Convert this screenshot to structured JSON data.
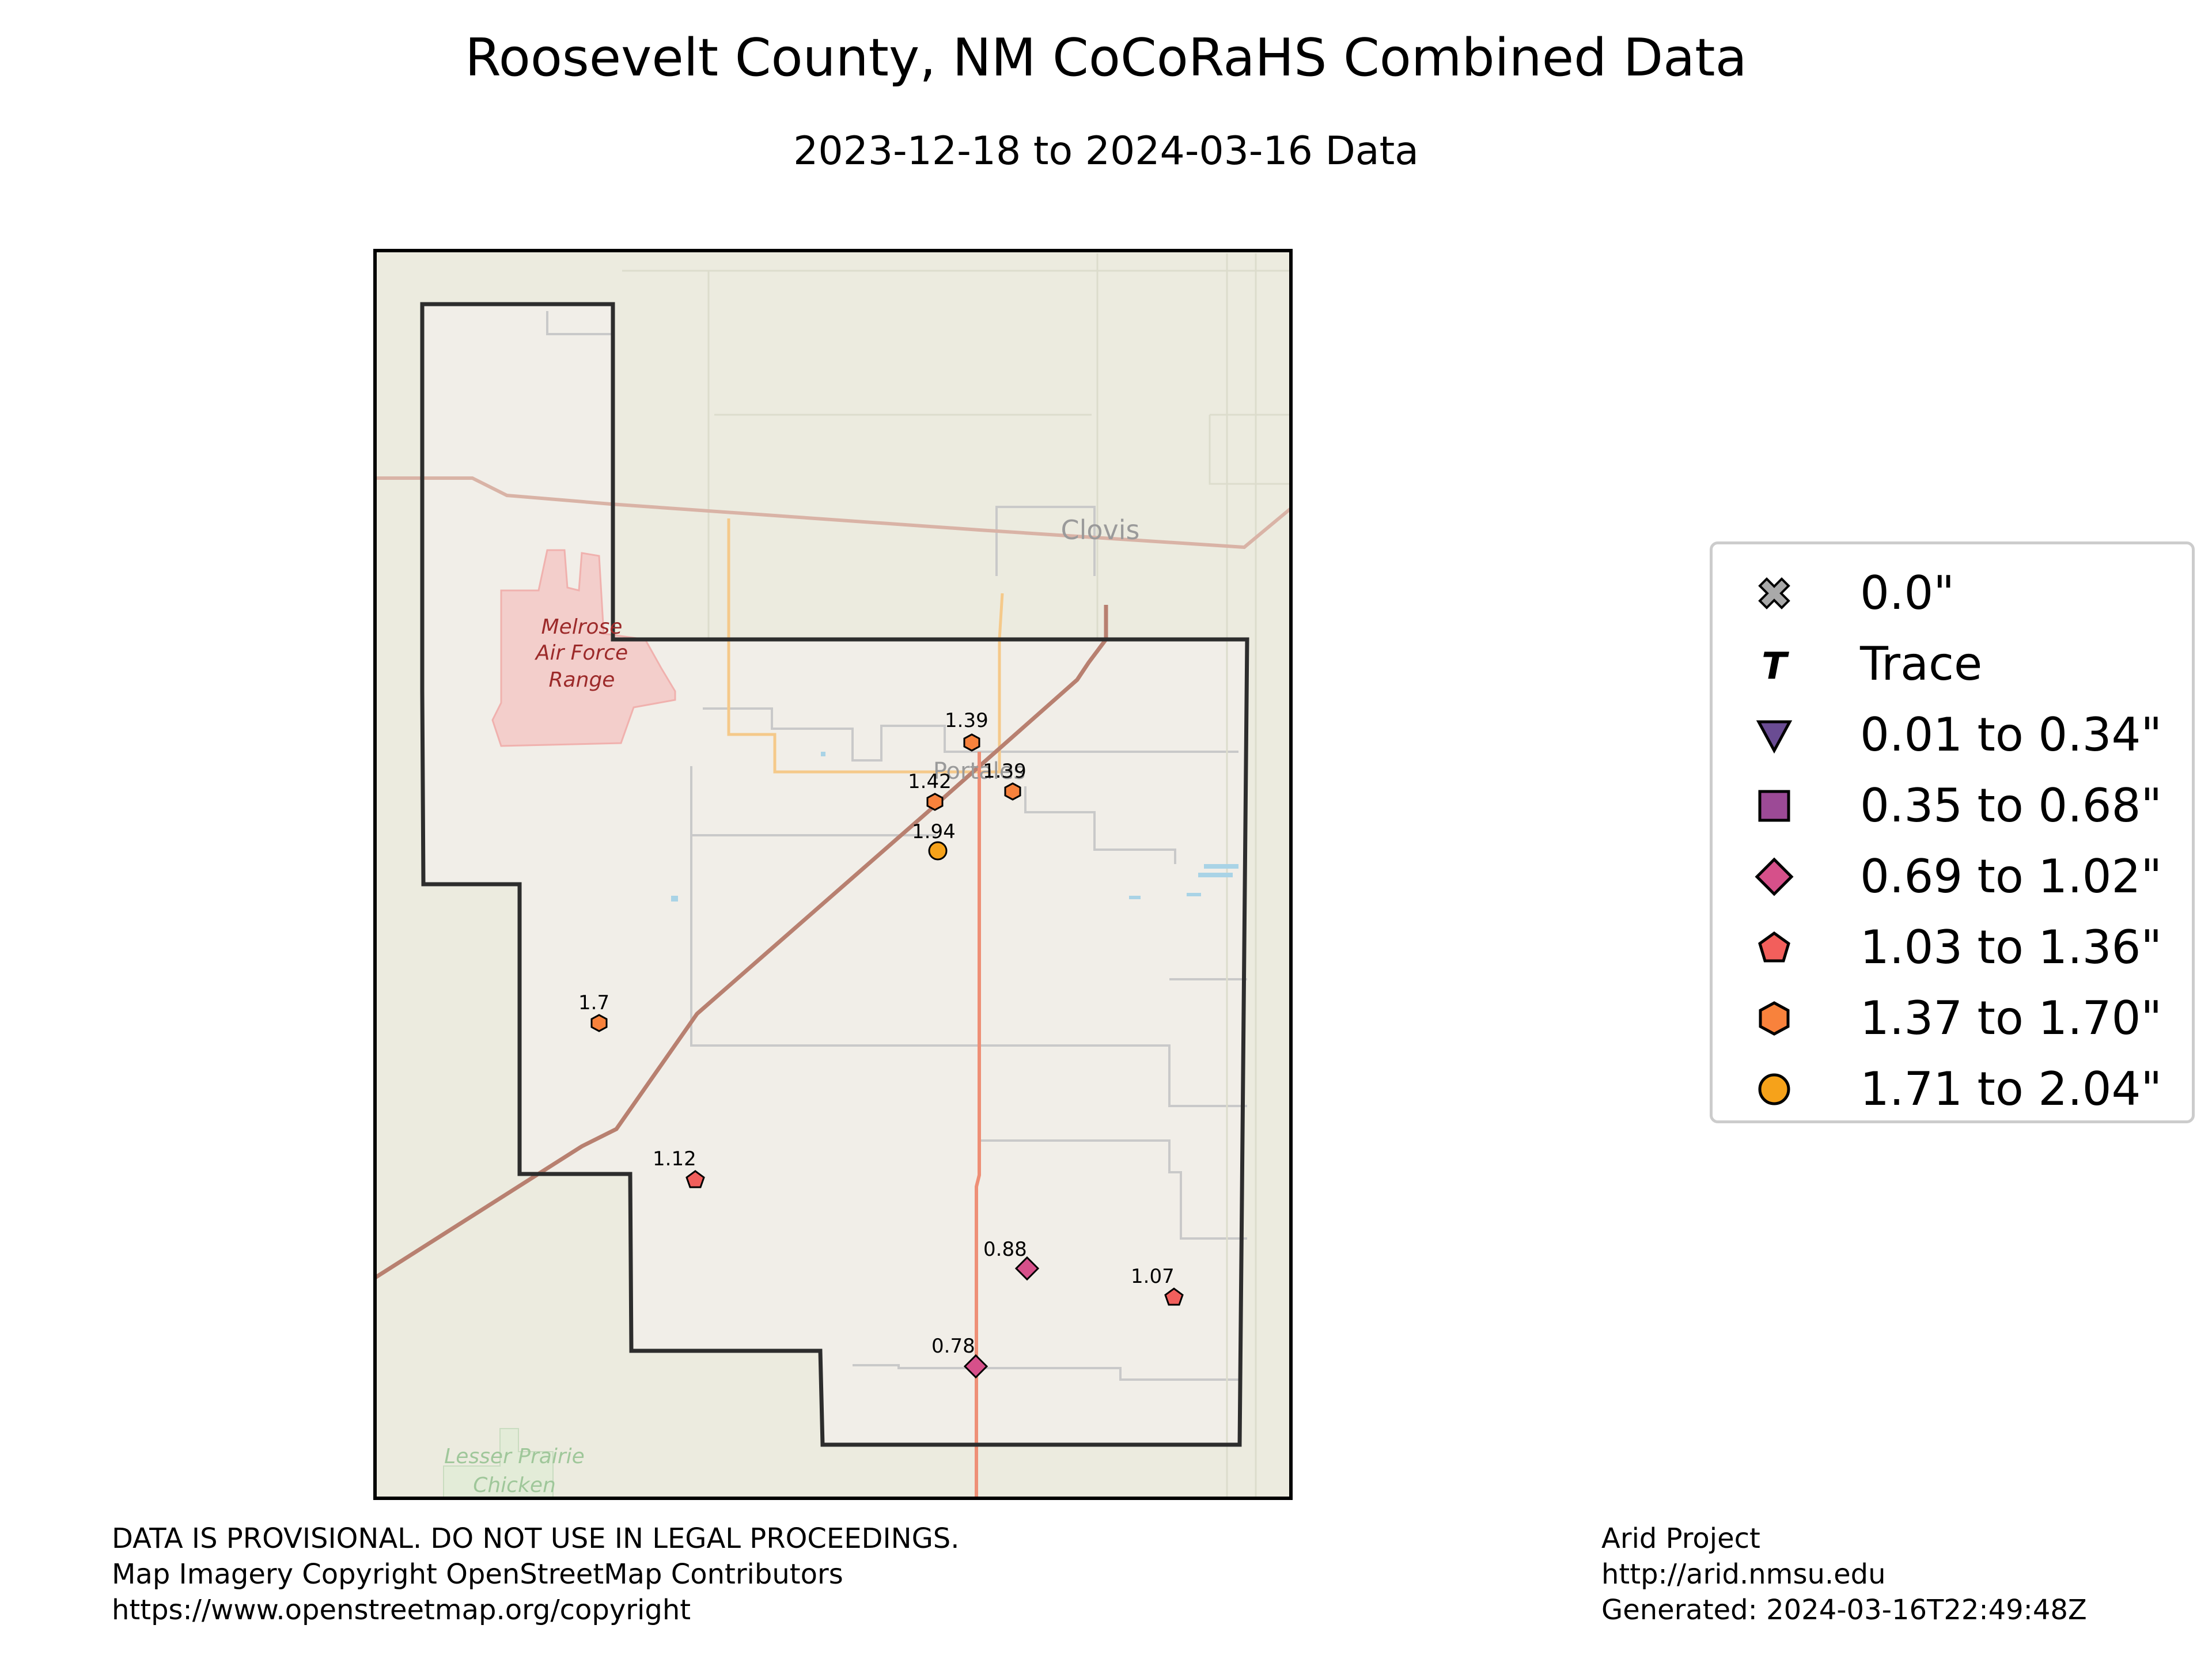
{
  "title": "Roosevelt County, NM CoCoRaHS Combined Data",
  "subtitle": "2023-12-18 to 2024-03-16 Data",
  "map": {
    "place_labels": {
      "clovis": "Clovis",
      "portales": "Portales",
      "melrose_1": "Melrose",
      "melrose_2": "Air Force",
      "melrose_3": "Range",
      "prairie_1": "Lesser Prairie",
      "prairie_2": "Chicken"
    },
    "colors": {
      "background": "#ecebdf",
      "county_fill": "#f1eee8",
      "highway": "#e8896d",
      "road": "#c9c9c9",
      "military": "#f4b8b6"
    }
  },
  "stations": [
    {
      "label": "1.39",
      "value": 1.39,
      "category": "1.37 to 1.70\""
    },
    {
      "label": "1.39",
      "value": 1.39,
      "category": "1.37 to 1.70\""
    },
    {
      "label": "1.42",
      "value": 1.42,
      "category": "1.37 to 1.70\""
    },
    {
      "label": "1.94",
      "value": 1.94,
      "category": "1.71 to 2.04\""
    },
    {
      "label": "1.7",
      "value": 1.7,
      "category": "1.37 to 1.70\""
    },
    {
      "label": "1.12",
      "value": 1.12,
      "category": "1.03 to 1.36\""
    },
    {
      "label": "0.88",
      "value": 0.88,
      "category": "0.69 to 1.02\""
    },
    {
      "label": "1.07",
      "value": 1.07,
      "category": "1.03 to 1.36\""
    },
    {
      "label": "0.78",
      "value": 0.78,
      "category": "0.69 to 1.02\""
    }
  ],
  "legend": [
    {
      "label": "0.0\"",
      "marker": "x-icon",
      "color": "#a9a9a9"
    },
    {
      "label": "Trace",
      "marker": "t-icon",
      "color": "#000000"
    },
    {
      "label": "0.01 to 0.34\"",
      "marker": "triangle-down-icon",
      "color": "#6a4c93"
    },
    {
      "label": "0.35 to 0.68\"",
      "marker": "square-icon",
      "color": "#9c4a96"
    },
    {
      "label": "0.69 to 1.02\"",
      "marker": "diamond-icon",
      "color": "#d6508a"
    },
    {
      "label": "1.03 to 1.36\"",
      "marker": "pentagon-icon",
      "color": "#f25f5c"
    },
    {
      "label": "1.37 to 1.70\"",
      "marker": "hexagon-icon",
      "color": "#f8823c"
    },
    {
      "label": "1.71 to 2.04\"",
      "marker": "circle-icon",
      "color": "#f6a21a"
    }
  ],
  "footer_left": [
    "DATA IS PROVISIONAL. DO NOT USE IN LEGAL PROCEEDINGS.",
    "Map Imagery Copyright OpenStreetMap Contributors",
    "https://www.openstreetmap.org/copyright"
  ],
  "footer_right": [
    "Arid Project",
    "http://arid.nmsu.edu",
    "Generated: 2024-03-16T22:49:48Z"
  ]
}
